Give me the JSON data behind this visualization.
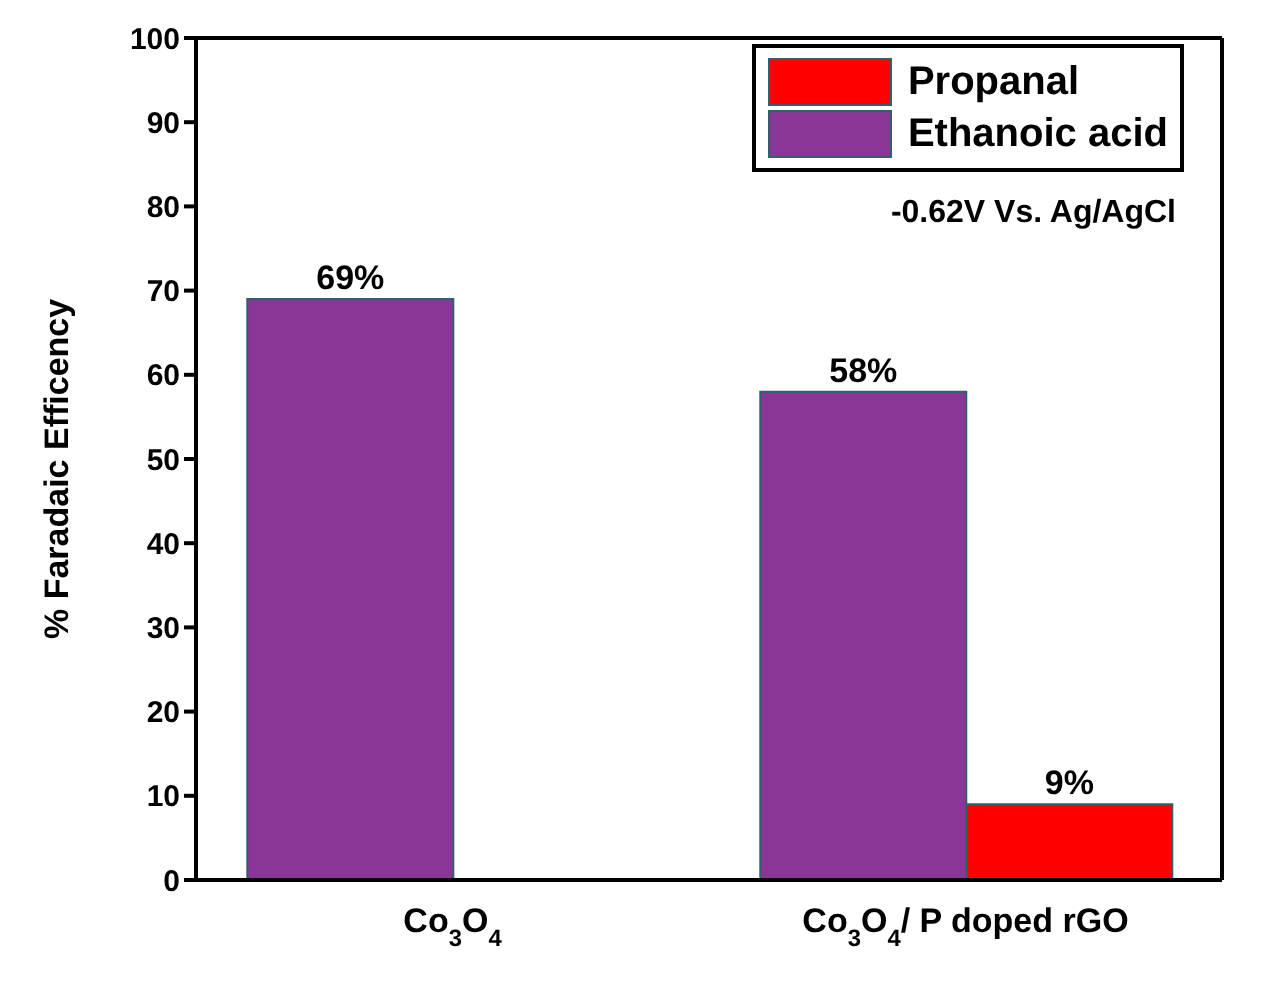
{
  "chart_data": {
    "type": "bar",
    "ylabel": "% Faradaic Efficency",
    "categories": [
      "Co$_{3}$O$_{4}$",
      "Co$_{3}$O$_{4}$/ P doped rGO"
    ],
    "series": [
      {
        "name": "Propanal",
        "color": "#ff0000",
        "values": [
          null,
          9
        ],
        "value_labels": [
          null,
          "9%"
        ]
      },
      {
        "name": "Ethanoic acid",
        "color": "#8a3597",
        "values": [
          69,
          58
        ],
        "value_labels": [
          "69%",
          "58%"
        ]
      }
    ],
    "ylim": [
      0,
      100
    ],
    "yticks": [
      0,
      10,
      20,
      30,
      40,
      50,
      60,
      70,
      80,
      90,
      100
    ],
    "legend": "top right",
    "annotations": [
      "-0.62V Vs. Ag/AgCl"
    ]
  }
}
